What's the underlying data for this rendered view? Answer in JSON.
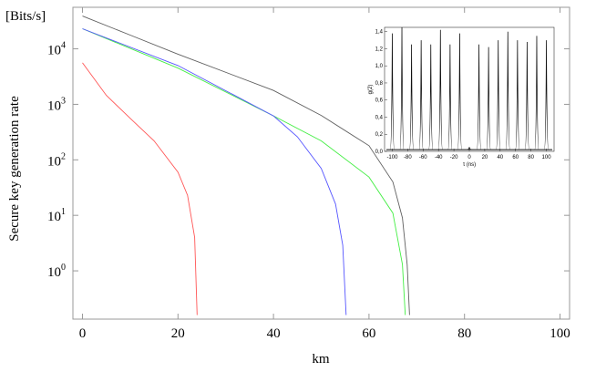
{
  "chart_data": [
    {
      "type": "line",
      "y_label_top": "[Bits/s]",
      "ylabel": "Secure key generation rate",
      "xlabel": "km",
      "log_y": true,
      "xlim": [
        -2,
        102
      ],
      "ylim": [
        0.135,
        56000
      ],
      "xticks": [
        0,
        20,
        40,
        60,
        80,
        100
      ],
      "yticks": [
        {
          "value": 1,
          "label": "10",
          "exponent": "0"
        },
        {
          "value": 10,
          "label": "10",
          "exponent": "1"
        },
        {
          "value": 100,
          "label": "10",
          "exponent": "2"
        },
        {
          "value": 1000,
          "label": "10",
          "exponent": "3"
        },
        {
          "value": 10000,
          "label": "10",
          "exponent": "4"
        }
      ],
      "series": [
        {
          "color": "#606060",
          "x": [
            0,
            10,
            20,
            40,
            50,
            60,
            65,
            67,
            68,
            68.5
          ],
          "values": [
            39000,
            17700,
            8000,
            1780,
            630,
            180,
            40,
            9,
            1.3,
            0.16
          ]
        },
        {
          "color": "#44ee44",
          "x": [
            0,
            20,
            40,
            50,
            60,
            65,
            67,
            67.6
          ],
          "values": [
            23000,
            4500,
            620,
            220,
            49,
            11,
            1.3,
            0.16
          ]
        },
        {
          "color": "#5555ff",
          "x": [
            0,
            20,
            40,
            45,
            50,
            53,
            54.5,
            55.2
          ],
          "values": [
            23000,
            5000,
            620,
            260,
            70,
            16,
            2.9,
            0.16
          ]
        },
        {
          "color": "#ff5555",
          "x": [
            0,
            5,
            10,
            15,
            20,
            22,
            23.5,
            24
          ],
          "values": [
            5600,
            1450,
            560,
            220,
            60,
            23,
            4,
            0.16
          ]
        }
      ]
    },
    {
      "type": "peaks",
      "ylabel": "g(2)",
      "xlabel": "τ (ns)",
      "color": "#111111",
      "xlim": [
        -110,
        110
      ],
      "ylim": [
        0,
        1.45
      ],
      "xticks": [
        -100,
        -80,
        -60,
        -40,
        -20,
        0,
        20,
        40,
        60,
        80,
        100
      ],
      "yticks": [
        {
          "value": 0,
          "label": "0,0"
        },
        {
          "value": 0.2,
          "label": "0,2"
        },
        {
          "value": 0.4,
          "label": "0,4"
        },
        {
          "value": 0.6,
          "label": "0,6"
        },
        {
          "value": 0.8,
          "label": "0,8"
        },
        {
          "value": 1.0,
          "label": "1,0"
        },
        {
          "value": 1.2,
          "label": "1,2"
        },
        {
          "value": 1.4,
          "label": "1,4"
        }
      ],
      "x": [
        -100,
        -87.5,
        -75,
        -62.5,
        -50,
        -37.5,
        -25,
        -12.5,
        0,
        12.5,
        25,
        37.5,
        50,
        62.5,
        75,
        87.5,
        100
      ],
      "values": [
        1.38,
        1.45,
        1.25,
        1.3,
        1.25,
        1.42,
        1.25,
        1.38,
        0.05,
        1.25,
        1.22,
        1.3,
        1.4,
        1.3,
        1.28,
        1.35,
        1.3
      ]
    }
  ]
}
